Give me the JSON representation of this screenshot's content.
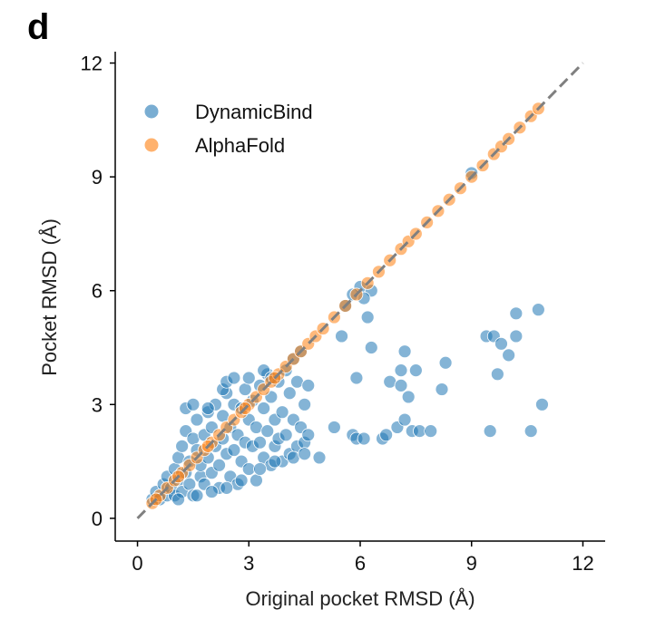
{
  "panel_label": "d",
  "chart_data": {
    "type": "scatter",
    "title": "",
    "xlabel": "Original pocket RMSD (Å)",
    "ylabel": "Pocket RMSD (Å)",
    "xlim": [
      -0.6,
      12.6
    ],
    "ylim": [
      -0.6,
      12.3
    ],
    "xticks": [
      0,
      3,
      6,
      9,
      12
    ],
    "yticks": [
      0,
      3,
      6,
      9,
      12
    ],
    "xtick_labels": [
      "0",
      "3",
      "6",
      "9",
      "12"
    ],
    "ytick_labels": [
      "0",
      "3",
      "6",
      "9",
      "12"
    ],
    "legend": {
      "position": "top-left"
    },
    "reference_line": {
      "label": "y = x",
      "from": [
        0,
        0
      ],
      "to": [
        12,
        12
      ],
      "style": "dashed",
      "color": "#808080"
    },
    "series": [
      {
        "name": "DynamicBind",
        "color": "#1f77b4",
        "points": [
          [
            0.4,
            0.5
          ],
          [
            0.5,
            0.7
          ],
          [
            0.6,
            0.5
          ],
          [
            0.7,
            0.9
          ],
          [
            0.8,
            0.6
          ],
          [
            0.8,
            1.1
          ],
          [
            0.9,
            0.8
          ],
          [
            1.0,
            1.3
          ],
          [
            1.0,
            0.6
          ],
          [
            1.1,
            1.0
          ],
          [
            1.1,
            1.6
          ],
          [
            1.2,
            0.7
          ],
          [
            1.2,
            1.9
          ],
          [
            1.3,
            1.2
          ],
          [
            1.3,
            2.3
          ],
          [
            1.4,
            0.9
          ],
          [
            1.4,
            1.5
          ],
          [
            1.5,
            2.1
          ],
          [
            1.5,
            0.6
          ],
          [
            1.6,
            1.8
          ],
          [
            1.6,
            2.6
          ],
          [
            1.7,
            1.1
          ],
          [
            1.7,
            1.4
          ],
          [
            1.8,
            2.2
          ],
          [
            1.8,
            0.9
          ],
          [
            1.9,
            2.8
          ],
          [
            1.9,
            1.6
          ],
          [
            2.0,
            1.2
          ],
          [
            2.0,
            2.4
          ],
          [
            2.1,
            1.9
          ],
          [
            2.1,
            3.0
          ],
          [
            2.2,
            1.4
          ],
          [
            2.2,
            0.8
          ],
          [
            2.3,
            2.1
          ],
          [
            2.3,
            2.7
          ],
          [
            2.4,
            1.7
          ],
          [
            2.4,
            3.3
          ],
          [
            2.5,
            1.1
          ],
          [
            2.5,
            2.4
          ],
          [
            2.6,
            3.0
          ],
          [
            2.6,
            1.8
          ],
          [
            2.7,
            2.2
          ],
          [
            2.7,
            0.9
          ],
          [
            2.8,
            2.9
          ],
          [
            2.8,
            1.5
          ],
          [
            2.9,
            3.4
          ],
          [
            2.9,
            2.0
          ],
          [
            3.0,
            1.3
          ],
          [
            3.0,
            2.6
          ],
          [
            3.1,
            3.1
          ],
          [
            3.1,
            1.9
          ],
          [
            3.2,
            2.4
          ],
          [
            3.2,
            1.0
          ],
          [
            3.3,
            3.5
          ],
          [
            3.3,
            2.0
          ],
          [
            3.4,
            1.6
          ],
          [
            3.4,
            2.9
          ],
          [
            3.5,
            3.8
          ],
          [
            3.5,
            2.3
          ],
          [
            3.6,
            1.4
          ],
          [
            3.6,
            3.2
          ],
          [
            3.7,
            2.6
          ],
          [
            3.7,
            1.9
          ],
          [
            3.8,
            3.6
          ],
          [
            3.8,
            2.1
          ],
          [
            3.9,
            1.5
          ],
          [
            3.9,
            2.8
          ],
          [
            4.0,
            3.9
          ],
          [
            4.0,
            2.2
          ],
          [
            4.1,
            1.7
          ],
          [
            4.1,
            3.3
          ],
          [
            4.2,
            2.6
          ],
          [
            4.2,
            4.2
          ],
          [
            4.3,
            1.9
          ],
          [
            4.3,
            3.6
          ],
          [
            4.4,
            2.4
          ],
          [
            4.4,
            4.4
          ],
          [
            4.5,
            3.0
          ],
          [
            4.5,
            2.0
          ],
          [
            4.6,
            3.5
          ],
          [
            1.3,
            2.9
          ],
          [
            1.5,
            3.0
          ],
          [
            1.9,
            2.9
          ],
          [
            2.3,
            3.4
          ],
          [
            2.4,
            3.6
          ],
          [
            2.6,
            3.7
          ],
          [
            3.4,
            3.9
          ],
          [
            3.6,
            3.7
          ],
          [
            4.6,
            2.2
          ],
          [
            4.9,
            1.6
          ],
          [
            2.0,
            0.7
          ],
          [
            2.4,
            0.8
          ],
          [
            2.8,
            1.0
          ],
          [
            3.3,
            1.3
          ],
          [
            3.7,
            1.5
          ],
          [
            4.2,
            1.6
          ],
          [
            4.5,
            1.7
          ],
          [
            1.1,
            0.5
          ],
          [
            1.6,
            0.6
          ],
          [
            3.0,
            3.7
          ],
          [
            5.3,
            2.4
          ],
          [
            5.5,
            4.8
          ],
          [
            5.6,
            5.6
          ],
          [
            5.8,
            2.2
          ],
          [
            5.9,
            3.7
          ],
          [
            5.9,
            2.1
          ],
          [
            6.1,
            2.1
          ],
          [
            6.2,
            5.3
          ],
          [
            6.3,
            4.5
          ],
          [
            6.6,
            2.1
          ],
          [
            6.7,
            2.2
          ],
          [
            6.8,
            3.6
          ],
          [
            7.0,
            2.4
          ],
          [
            7.1,
            3.9
          ],
          [
            7.1,
            3.5
          ],
          [
            7.2,
            4.4
          ],
          [
            7.2,
            2.6
          ],
          [
            7.3,
            3.2
          ],
          [
            7.4,
            2.3
          ],
          [
            7.5,
            3.9
          ],
          [
            7.6,
            2.3
          ],
          [
            7.9,
            2.3
          ],
          [
            8.2,
            3.4
          ],
          [
            8.3,
            4.1
          ],
          [
            9.4,
            4.8
          ],
          [
            9.5,
            2.3
          ],
          [
            9.6,
            4.8
          ],
          [
            9.7,
            3.8
          ],
          [
            9.8,
            4.6
          ],
          [
            10.0,
            4.3
          ],
          [
            10.2,
            4.8
          ],
          [
            10.2,
            5.4
          ],
          [
            10.6,
            2.3
          ],
          [
            10.8,
            5.5
          ],
          [
            10.9,
            3.0
          ],
          [
            6.0,
            6.1
          ],
          [
            6.3,
            6.0
          ],
          [
            5.8,
            5.9
          ],
          [
            6.1,
            5.8
          ],
          [
            9.0,
            9.1
          ]
        ]
      },
      {
        "name": "AlphaFold",
        "color": "#ff7f0e",
        "points": [
          [
            0.4,
            0.4
          ],
          [
            0.6,
            0.6
          ],
          [
            0.8,
            0.8
          ],
          [
            1.0,
            1.0
          ],
          [
            1.2,
            1.2
          ],
          [
            1.4,
            1.4
          ],
          [
            1.6,
            1.6
          ],
          [
            1.8,
            1.8
          ],
          [
            2.0,
            2.0
          ],
          [
            2.2,
            2.2
          ],
          [
            2.4,
            2.4
          ],
          [
            2.6,
            2.6
          ],
          [
            2.8,
            2.8
          ],
          [
            3.0,
            3.0
          ],
          [
            3.2,
            3.2
          ],
          [
            3.4,
            3.4
          ],
          [
            3.6,
            3.6
          ],
          [
            3.8,
            3.8
          ],
          [
            4.0,
            4.0
          ],
          [
            4.2,
            4.2
          ],
          [
            4.4,
            4.4
          ],
          [
            4.6,
            4.6
          ],
          [
            4.8,
            4.8
          ],
          [
            5.0,
            5.0
          ],
          [
            5.3,
            5.3
          ],
          [
            5.6,
            5.6
          ],
          [
            5.9,
            5.9
          ],
          [
            6.2,
            6.2
          ],
          [
            6.5,
            6.5
          ],
          [
            6.8,
            6.8
          ],
          [
            7.1,
            7.1
          ],
          [
            7.3,
            7.3
          ],
          [
            7.5,
            7.5
          ],
          [
            7.8,
            7.8
          ],
          [
            8.1,
            8.1
          ],
          [
            8.4,
            8.4
          ],
          [
            8.7,
            8.7
          ],
          [
            9.0,
            9.0
          ],
          [
            9.3,
            9.3
          ],
          [
            9.6,
            9.6
          ],
          [
            9.8,
            9.8
          ],
          [
            10.0,
            10.0
          ],
          [
            10.3,
            10.3
          ],
          [
            10.6,
            10.6
          ],
          [
            10.8,
            10.8
          ],
          [
            0.5,
            0.5
          ],
          [
            1.1,
            1.1
          ],
          [
            1.9,
            1.9
          ],
          [
            2.9,
            2.9
          ],
          [
            3.7,
            3.7
          ]
        ]
      }
    ]
  }
}
